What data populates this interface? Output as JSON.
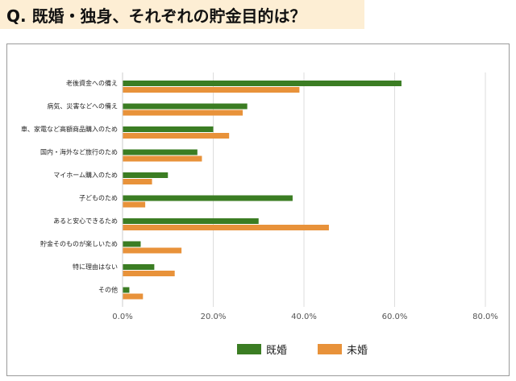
{
  "title": "Q. 既婚・独身、それぞれの貯金目的は？",
  "colors": {
    "married": "#3b7d23",
    "single": "#e8923a",
    "grid": "#dddddd",
    "axis_text": "#555555"
  },
  "chart_data": {
    "type": "bar",
    "orientation": "horizontal",
    "categories": [
      "老後資金への備え",
      "病気、災害などへの備え",
      "車、家電など高額商品購入のため",
      "国内・海外など旅行のため",
      "マイホーム購入のため",
      "子どものため",
      "あると安心できるため",
      "貯金そのものが楽しいため",
      "特に理由はない",
      "その他"
    ],
    "series": [
      {
        "name": "既婚",
        "color": "#3b7d23",
        "values": [
          61.5,
          27.5,
          20.0,
          16.5,
          10.0,
          37.5,
          30.0,
          4.0,
          7.0,
          1.5
        ]
      },
      {
        "name": "未婚",
        "color": "#e8923a",
        "values": [
          39.0,
          26.5,
          23.5,
          17.5,
          6.5,
          5.0,
          45.5,
          13.0,
          11.5,
          4.5
        ]
      }
    ],
    "xlim": [
      0,
      80
    ],
    "xticks": [
      "0.0%",
      "20.0%",
      "40.0%",
      "60.0%",
      "80.0%"
    ],
    "grid": true,
    "legend": "bottom-center"
  }
}
